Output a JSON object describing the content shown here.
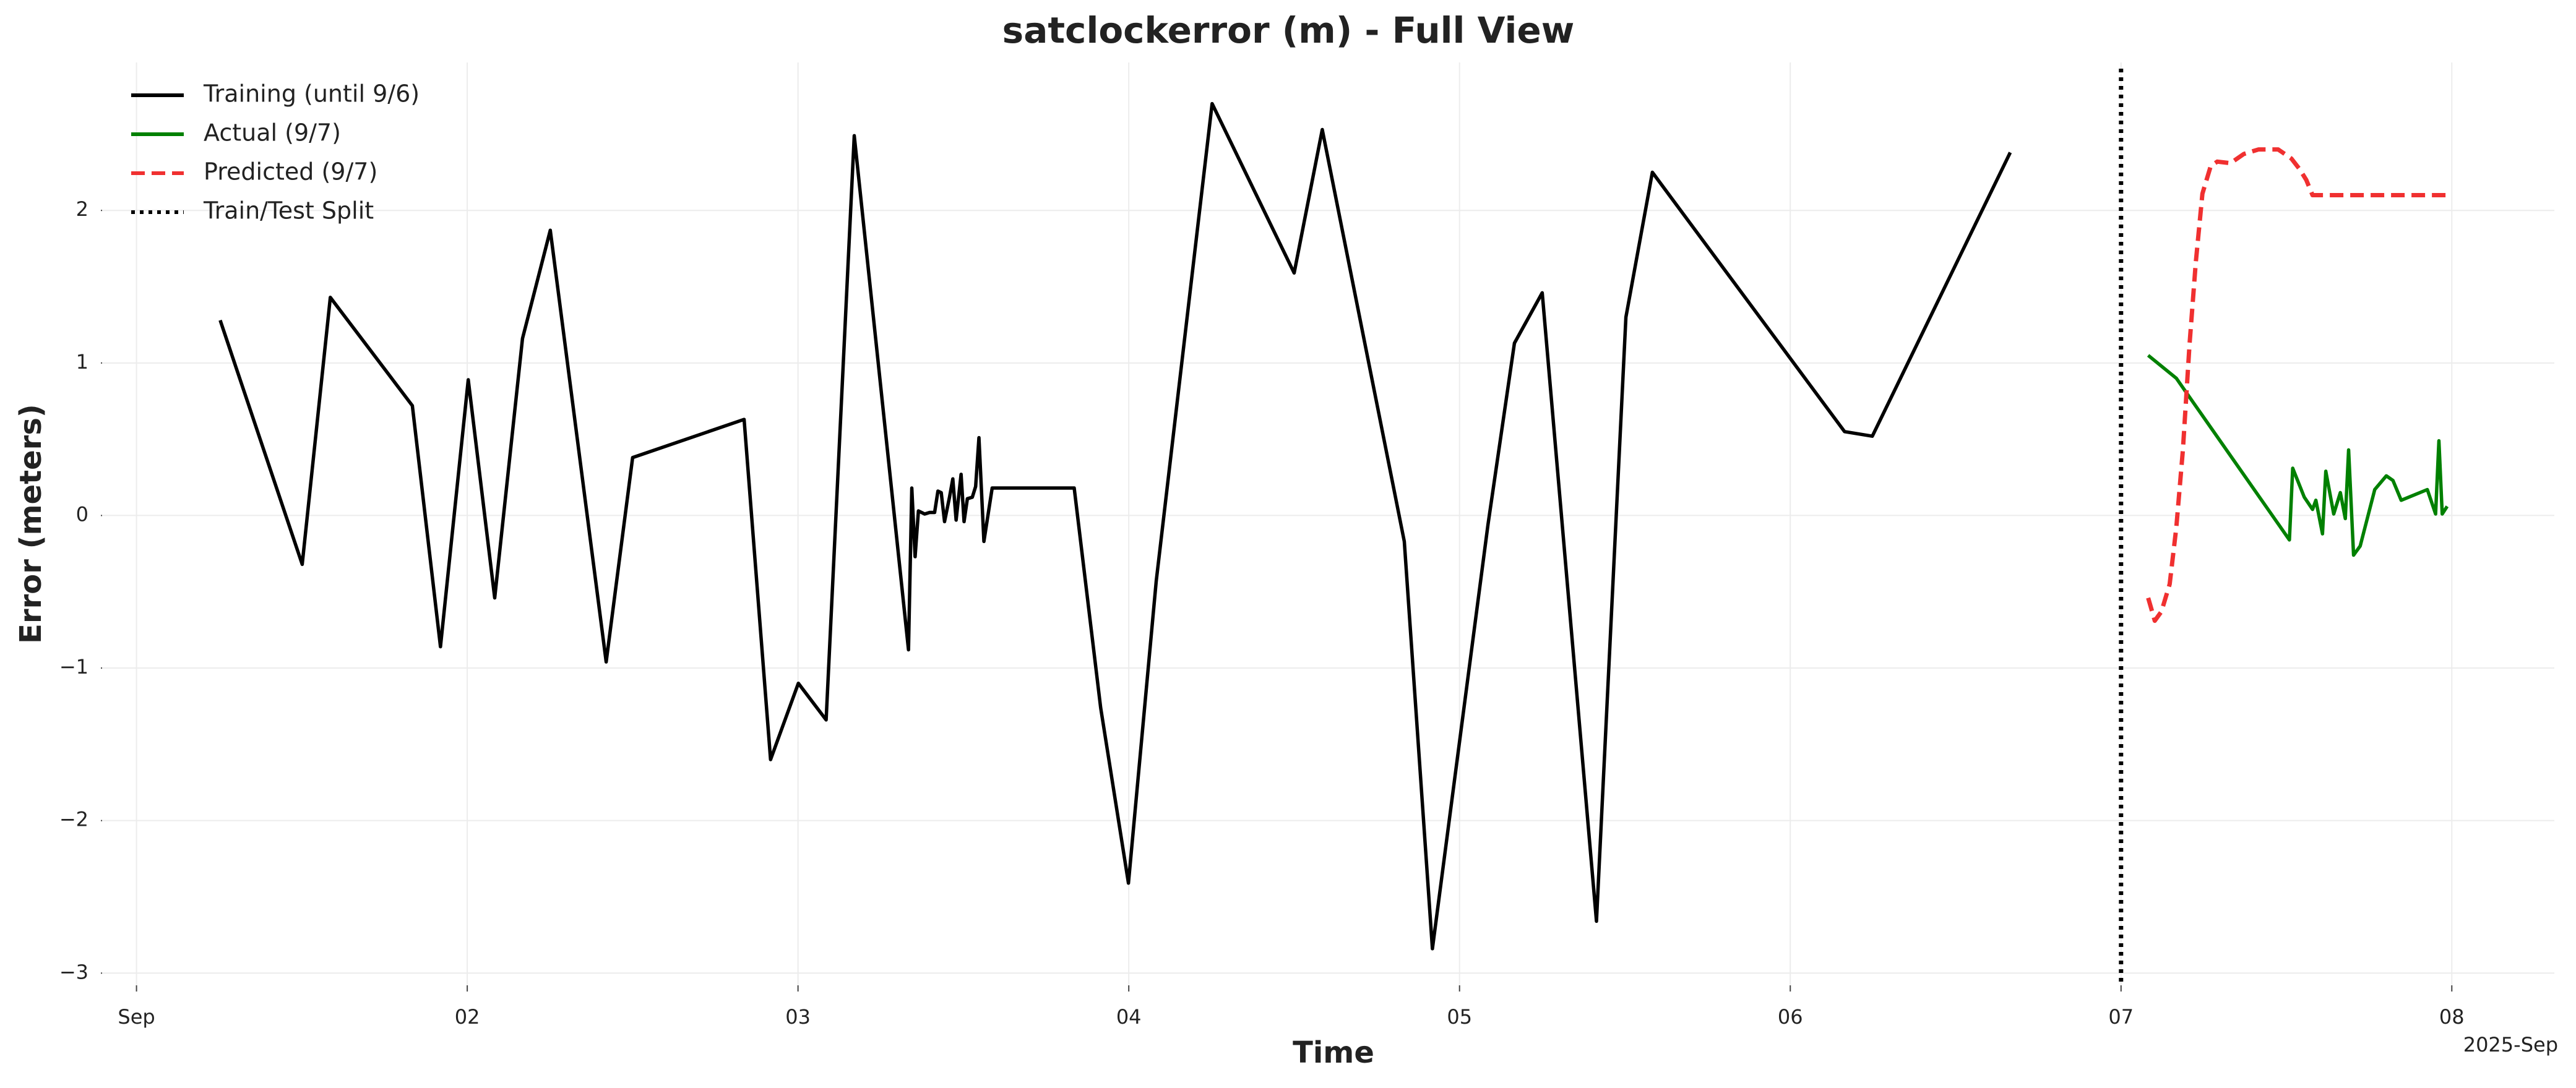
{
  "chart_data": {
    "type": "line",
    "title": "satclockerror (m) - Full View",
    "xlabel": "Time",
    "ylabel": "Error (meters)",
    "x_offset_label": "2025-Sep",
    "xlim": [
      0.896,
      8.31
    ],
    "ylim": [
      -3.08,
      2.97
    ],
    "xticks": [
      {
        "value": 1,
        "label": "Sep"
      },
      {
        "value": 2,
        "label": "02"
      },
      {
        "value": 3,
        "label": "03"
      },
      {
        "value": 4,
        "label": "04"
      },
      {
        "value": 5,
        "label": "05"
      },
      {
        "value": 6,
        "label": "06"
      },
      {
        "value": 7,
        "label": "07"
      },
      {
        "value": 8,
        "label": "08"
      }
    ],
    "yticks": [
      {
        "value": -3,
        "label": "−3"
      },
      {
        "value": -2,
        "label": "−2"
      },
      {
        "value": -1,
        "label": "−1"
      },
      0,
      1,
      2
    ],
    "grid": true,
    "legend": "upper left",
    "series": [
      {
        "name": "Training (until 9/6)",
        "color": "#000000",
        "linestyle": "solid",
        "x": [
          1.253,
          1.501,
          1.586,
          1.834,
          1.919,
          2.003,
          2.083,
          2.167,
          2.251,
          2.42,
          2.5,
          2.837,
          2.917,
          3.001,
          3.085,
          3.13,
          3.17,
          3.334,
          3.344,
          3.354,
          3.364,
          3.383,
          3.398,
          3.413,
          3.423,
          3.433,
          3.443,
          3.458,
          3.468,
          3.478,
          3.493,
          3.502,
          3.512,
          3.527,
          3.537,
          3.547,
          3.562,
          3.587,
          3.835,
          3.915,
          3.999,
          4.083,
          4.252,
          4.5,
          4.585,
          4.833,
          4.918,
          5.086,
          5.166,
          5.25,
          5.414,
          5.503,
          5.583,
          6.164,
          6.248,
          6.665
        ],
        "values": [
          1.28,
          -0.32,
          1.43,
          0.72,
          -0.86,
          0.89,
          -0.54,
          1.16,
          1.87,
          -0.96,
          0.38,
          0.63,
          -1.6,
          -1.1,
          -1.34,
          0.69,
          2.49,
          -0.88,
          0.18,
          -0.27,
          0.03,
          0.01,
          0.02,
          0.02,
          0.16,
          0.15,
          -0.04,
          0.12,
          0.24,
          -0.03,
          0.27,
          -0.04,
          0.11,
          0.12,
          0.19,
          0.51,
          -0.17,
          0.18,
          0.18,
          -1.26,
          -2.41,
          -0.43,
          2.7,
          1.59,
          2.53,
          -0.17,
          -2.84,
          -0.06,
          1.13,
          1.46,
          -2.66,
          1.3,
          2.25,
          0.55,
          0.52,
          2.38
        ]
      },
      {
        "name": "Actual (9/7)",
        "color": "#008000",
        "linestyle": "solid",
        "x": [
          7.082,
          7.167,
          7.509,
          7.519,
          7.554,
          7.579,
          7.589,
          7.609,
          7.619,
          7.643,
          7.663,
          7.678,
          7.688,
          7.703,
          7.723,
          7.767,
          7.802,
          7.822,
          7.847,
          7.926,
          7.951,
          7.961,
          7.971,
          7.986
        ],
        "values": [
          1.05,
          0.9,
          -0.16,
          0.31,
          0.12,
          0.04,
          0.1,
          -0.12,
          0.29,
          0.01,
          0.15,
          -0.02,
          0.43,
          -0.26,
          -0.2,
          0.17,
          0.26,
          0.23,
          0.1,
          0.17,
          0.01,
          0.49,
          0.01,
          0.06
        ]
      },
      {
        "name": "Predicted (9/7)",
        "color": "#f03030",
        "linestyle": "dashed",
        "x": [
          7.082,
          7.102,
          7.122,
          7.147,
          7.167,
          7.187,
          7.207,
          7.226,
          7.246,
          7.271,
          7.291,
          7.331,
          7.371,
          7.416,
          7.475,
          7.515,
          7.54,
          7.56,
          7.579,
          7.991
        ],
        "values": [
          -0.54,
          -0.69,
          -0.63,
          -0.45,
          -0.08,
          0.43,
          1.12,
          1.66,
          2.11,
          2.29,
          2.32,
          2.31,
          2.37,
          2.4,
          2.4,
          2.34,
          2.27,
          2.2,
          2.1,
          2.1
        ]
      }
    ],
    "vlines": [
      {
        "name": "Train/Test Split",
        "x": 7.0,
        "color": "#000000",
        "linestyle": "dotted"
      }
    ]
  }
}
